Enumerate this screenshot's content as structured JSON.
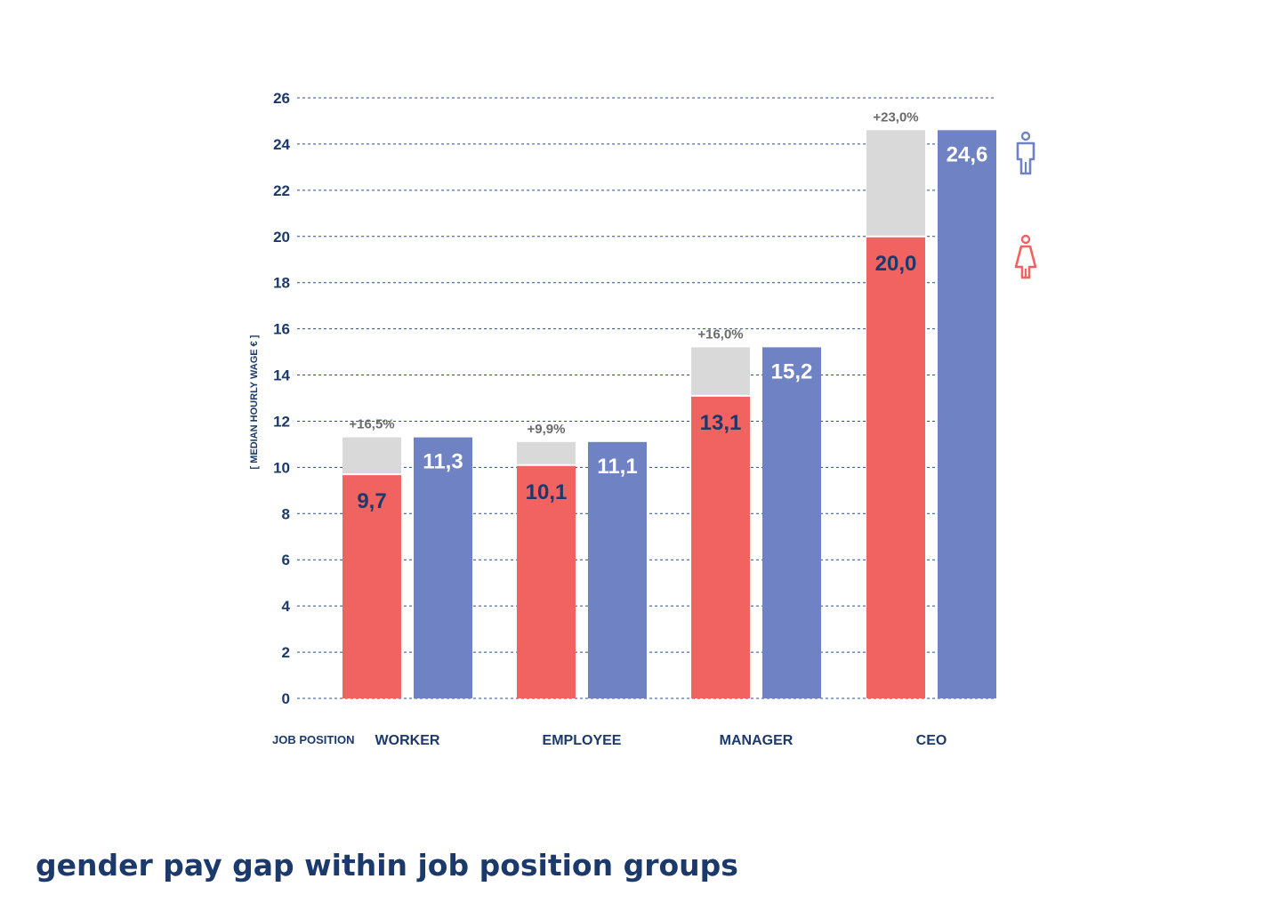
{
  "chart_data": {
    "type": "bar",
    "title": "gender pay gap within job position groups",
    "ylabel": "[ MEDIAN HOURLY WAGE € ]",
    "xlabel": "JOB POSITION",
    "categories": [
      "WORKER",
      "EMPLOYEE",
      "MANAGER",
      "CEO"
    ],
    "series": [
      {
        "name": "women",
        "color": "#f06360",
        "icon": "woman-icon",
        "values": [
          9.7,
          10.1,
          13.1,
          20.0
        ],
        "labels": [
          "9,7",
          "10,1",
          "13,1",
          "20,0"
        ]
      },
      {
        "name": "men",
        "color": "#6f83c4",
        "icon": "man-icon",
        "values": [
          11.3,
          11.1,
          15.2,
          24.6
        ],
        "labels": [
          "11,3",
          "11,1",
          "15,2",
          "24,6"
        ]
      }
    ],
    "gap_labels": [
      "+16,5%",
      "+9,9%",
      "+16,0%",
      "+23,0%"
    ],
    "gap_color": "#d9d9d9",
    "ylim": [
      0,
      26
    ],
    "yticks": [
      0,
      2,
      4,
      6,
      8,
      10,
      12,
      14,
      16,
      18,
      20,
      22,
      24,
      26
    ],
    "grid": true,
    "legend": "right",
    "text_color": "#1b3a6b"
  }
}
